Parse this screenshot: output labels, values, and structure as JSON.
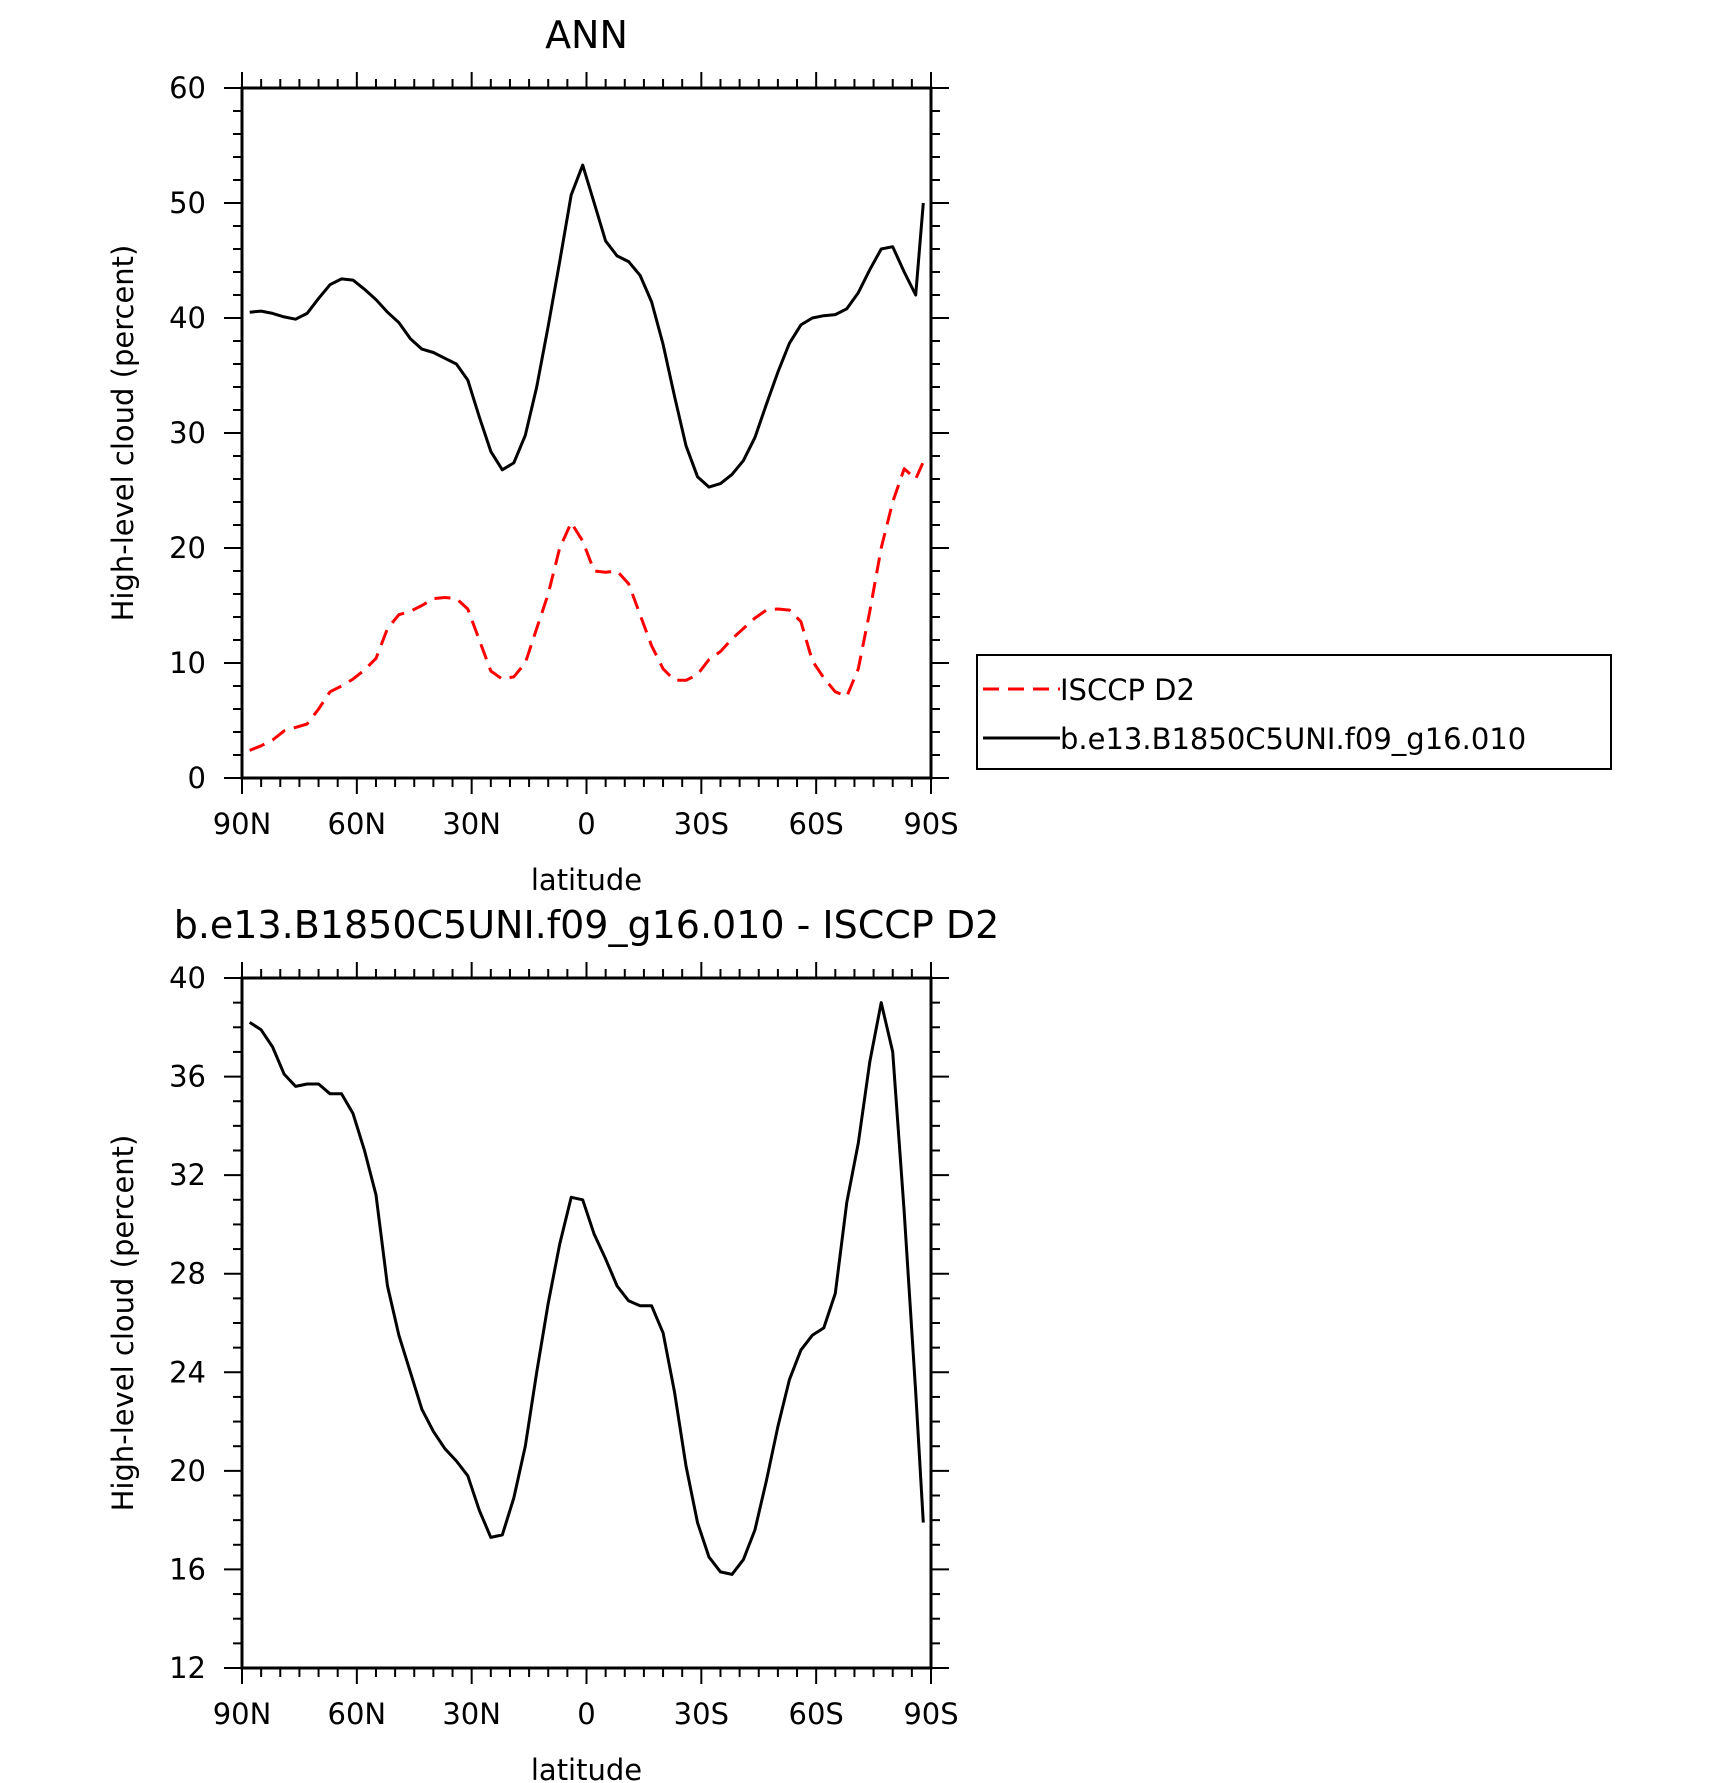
{
  "chart_data": [
    {
      "type": "line",
      "title": "ANN",
      "xlabel": "latitude",
      "ylabel": "High-level cloud (percent)",
      "xlim": [
        90,
        -90
      ],
      "ylim": [
        0,
        60
      ],
      "x_ticks": [
        90,
        60,
        30,
        0,
        -30,
        -60,
        -90
      ],
      "x_tick_labels": [
        "90N",
        "60N",
        "30N",
        "0",
        "30S",
        "60S",
        "90S"
      ],
      "y_ticks": [
        0,
        10,
        20,
        30,
        40,
        50,
        60
      ],
      "y_tick_labels": [
        "0",
        "10",
        "20",
        "30",
        "40",
        "50",
        "60"
      ],
      "grid": false,
      "legend": "right",
      "series": [
        {
          "name": "ISCCP D2",
          "color": "#ff0000",
          "dash": "dashed",
          "x": [
            88,
            85,
            82,
            79,
            76,
            73,
            70,
            67,
            64,
            61,
            58,
            55,
            52,
            49,
            46,
            43,
            40,
            37,
            34,
            31,
            28,
            25,
            22,
            19,
            16,
            13,
            10,
            7,
            4,
            1,
            -2,
            -5,
            -8,
            -11,
            -14,
            -17,
            -20,
            -23,
            -26,
            -29,
            -32,
            -35,
            -38,
            -41,
            -44,
            -47,
            -50,
            -53,
            -56,
            -59,
            -62,
            -65,
            -68,
            -71,
            -74,
            -77,
            -80,
            -83,
            -86,
            -88
          ],
          "y": [
            2.4,
            2.8,
            3.3,
            4.1,
            4.4,
            4.7,
            6.0,
            7.5,
            8.0,
            8.6,
            9.4,
            10.4,
            13.0,
            14.2,
            14.5,
            15.0,
            15.6,
            15.7,
            15.6,
            14.7,
            12.0,
            9.3,
            8.6,
            8.8,
            10.0,
            13.0,
            16.0,
            20.0,
            22.2,
            20.6,
            18.0,
            17.9,
            18.0,
            16.9,
            14.2,
            11.5,
            9.5,
            8.5,
            8.5,
            9.0,
            10.3,
            11.0,
            12.1,
            13.0,
            13.9,
            14.6,
            14.7,
            14.6,
            13.6,
            10.2,
            8.7,
            7.5,
            7.1,
            9.5,
            14.5,
            20.0,
            24.0,
            26.9,
            26.0,
            27.5
          ]
        },
        {
          "name": "b.e13.B1850C5UNI.f09_g16.010",
          "color": "#000000",
          "dash": "solid",
          "x": [
            88,
            85,
            82,
            79,
            76,
            73,
            70,
            67,
            64,
            61,
            58,
            55,
            52,
            49,
            46,
            43,
            40,
            37,
            34,
            31,
            28,
            25,
            22,
            19,
            16,
            13,
            10,
            7,
            4,
            1,
            -2,
            -5,
            -8,
            -11,
            -14,
            -17,
            -20,
            -23,
            -26,
            -29,
            -32,
            -35,
            -38,
            -41,
            -44,
            -47,
            -50,
            -53,
            -56,
            -59,
            -62,
            -65,
            -68,
            -71,
            -74,
            -77,
            -80,
            -83,
            -86,
            -88
          ],
          "y": [
            40.5,
            40.6,
            40.4,
            40.1,
            39.9,
            40.4,
            41.7,
            42.9,
            43.4,
            43.3,
            42.5,
            41.6,
            40.5,
            39.6,
            38.2,
            37.3,
            37.0,
            36.5,
            36.0,
            34.6,
            31.4,
            28.4,
            26.8,
            27.4,
            29.8,
            34.0,
            39.3,
            44.9,
            50.7,
            53.3,
            50.0,
            46.7,
            45.4,
            44.9,
            43.7,
            41.4,
            37.7,
            33.2,
            28.9,
            26.2,
            25.3,
            25.6,
            26.4,
            27.6,
            29.6,
            32.5,
            35.3,
            37.8,
            39.4,
            40.0,
            40.2,
            40.3,
            40.8,
            42.2,
            44.2,
            46.0,
            46.2,
            44.0,
            42.0,
            50.0
          ]
        }
      ]
    },
    {
      "type": "line",
      "title": "b.e13.B1850C5UNI.f09_g16.010 - ISCCP D2",
      "xlabel": "latitude",
      "ylabel": "High-level cloud (percent)",
      "xlim": [
        90,
        -90
      ],
      "ylim": [
        12,
        40
      ],
      "x_ticks": [
        90,
        60,
        30,
        0,
        -30,
        -60,
        -90
      ],
      "x_tick_labels": [
        "90N",
        "60N",
        "30N",
        "0",
        "30S",
        "60S",
        "90S"
      ],
      "y_ticks": [
        12,
        16,
        20,
        24,
        28,
        32,
        36,
        40
      ],
      "y_tick_labels": [
        "12",
        "16",
        "20",
        "24",
        "28",
        "32",
        "36",
        "40"
      ],
      "grid": false,
      "series": [
        {
          "color": "#000000",
          "dash": "solid",
          "x": [
            88,
            85,
            82,
            79,
            76,
            73,
            70,
            67,
            64,
            61,
            58,
            55,
            52,
            49,
            46,
            43,
            40,
            37,
            34,
            31,
            28,
            25,
            22,
            19,
            16,
            13,
            10,
            7,
            4,
            1,
            -2,
            -5,
            -8,
            -11,
            -14,
            -17,
            -20,
            -23,
            -26,
            -29,
            -32,
            -35,
            -38,
            -41,
            -44,
            -47,
            -50,
            -53,
            -56,
            -59,
            -62,
            -65,
            -68,
            -71,
            -74,
            -77,
            -80,
            -83,
            -86,
            -88
          ],
          "y": [
            38.2,
            37.9,
            37.2,
            36.1,
            35.6,
            35.7,
            35.7,
            35.3,
            35.3,
            34.5,
            33.0,
            31.2,
            27.5,
            25.5,
            24.0,
            22.5,
            21.6,
            20.9,
            20.4,
            19.8,
            18.4,
            17.3,
            17.4,
            18.9,
            21.0,
            24.0,
            26.8,
            29.2,
            31.1,
            31.0,
            29.6,
            28.6,
            27.5,
            26.9,
            26.7,
            26.7,
            25.6,
            23.2,
            20.2,
            17.9,
            16.5,
            15.9,
            15.8,
            16.4,
            17.6,
            19.6,
            21.8,
            23.7,
            24.9,
            25.5,
            25.8,
            27.2,
            30.9,
            33.3,
            36.6,
            39.0,
            37.0,
            30.5,
            23.2,
            17.9
          ]
        }
      ]
    }
  ]
}
